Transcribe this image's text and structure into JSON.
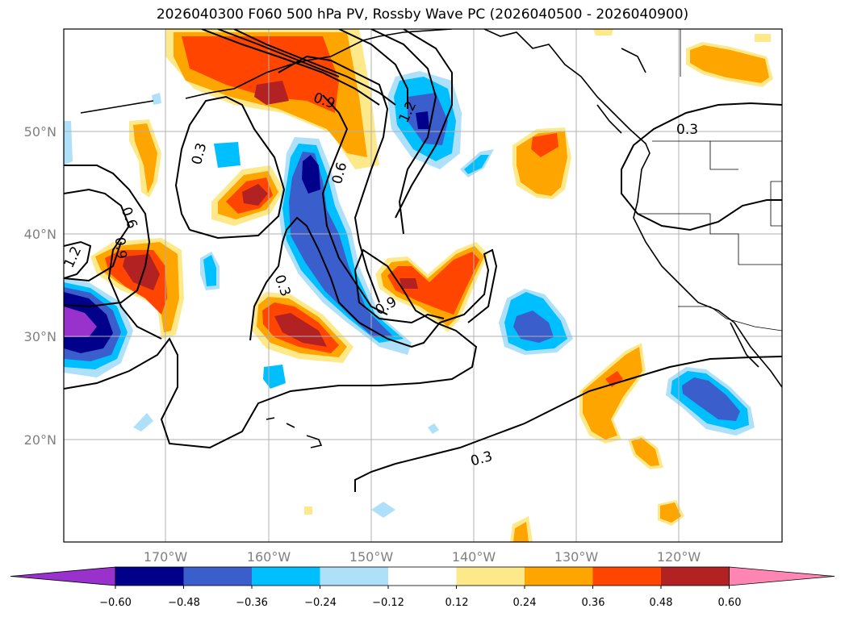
{
  "title": "2026040300 F060 500 hPa PV, Rossby Wave PC (2026040500 - 2026040900)",
  "lon_labels": [
    "170°W",
    "160°W",
    "150°W",
    "140°W",
    "130°W",
    "120°W"
  ],
  "lat_labels": [
    "50°N",
    "40°N",
    "30°N",
    "20°N"
  ],
  "contour_labels": [
    "0.3",
    "0.6",
    "0.9",
    "1.2"
  ],
  "colorbar": {
    "ticks": [
      "−0.60",
      "−0.48",
      "−0.36",
      "−0.24",
      "−0.12",
      "0.12",
      "0.24",
      "0.36",
      "0.48",
      "0.60"
    ],
    "colors": [
      "#9932cc",
      "#00008b",
      "#3a5fcd",
      "#00bfff",
      "#aee0fa",
      "#ffffff",
      "#fee98a",
      "#ffa500",
      "#ff4500",
      "#b22222",
      "#ff86b2"
    ]
  },
  "colors": {
    "gridline": "#b0b0b0",
    "coast": "#000000"
  }
}
